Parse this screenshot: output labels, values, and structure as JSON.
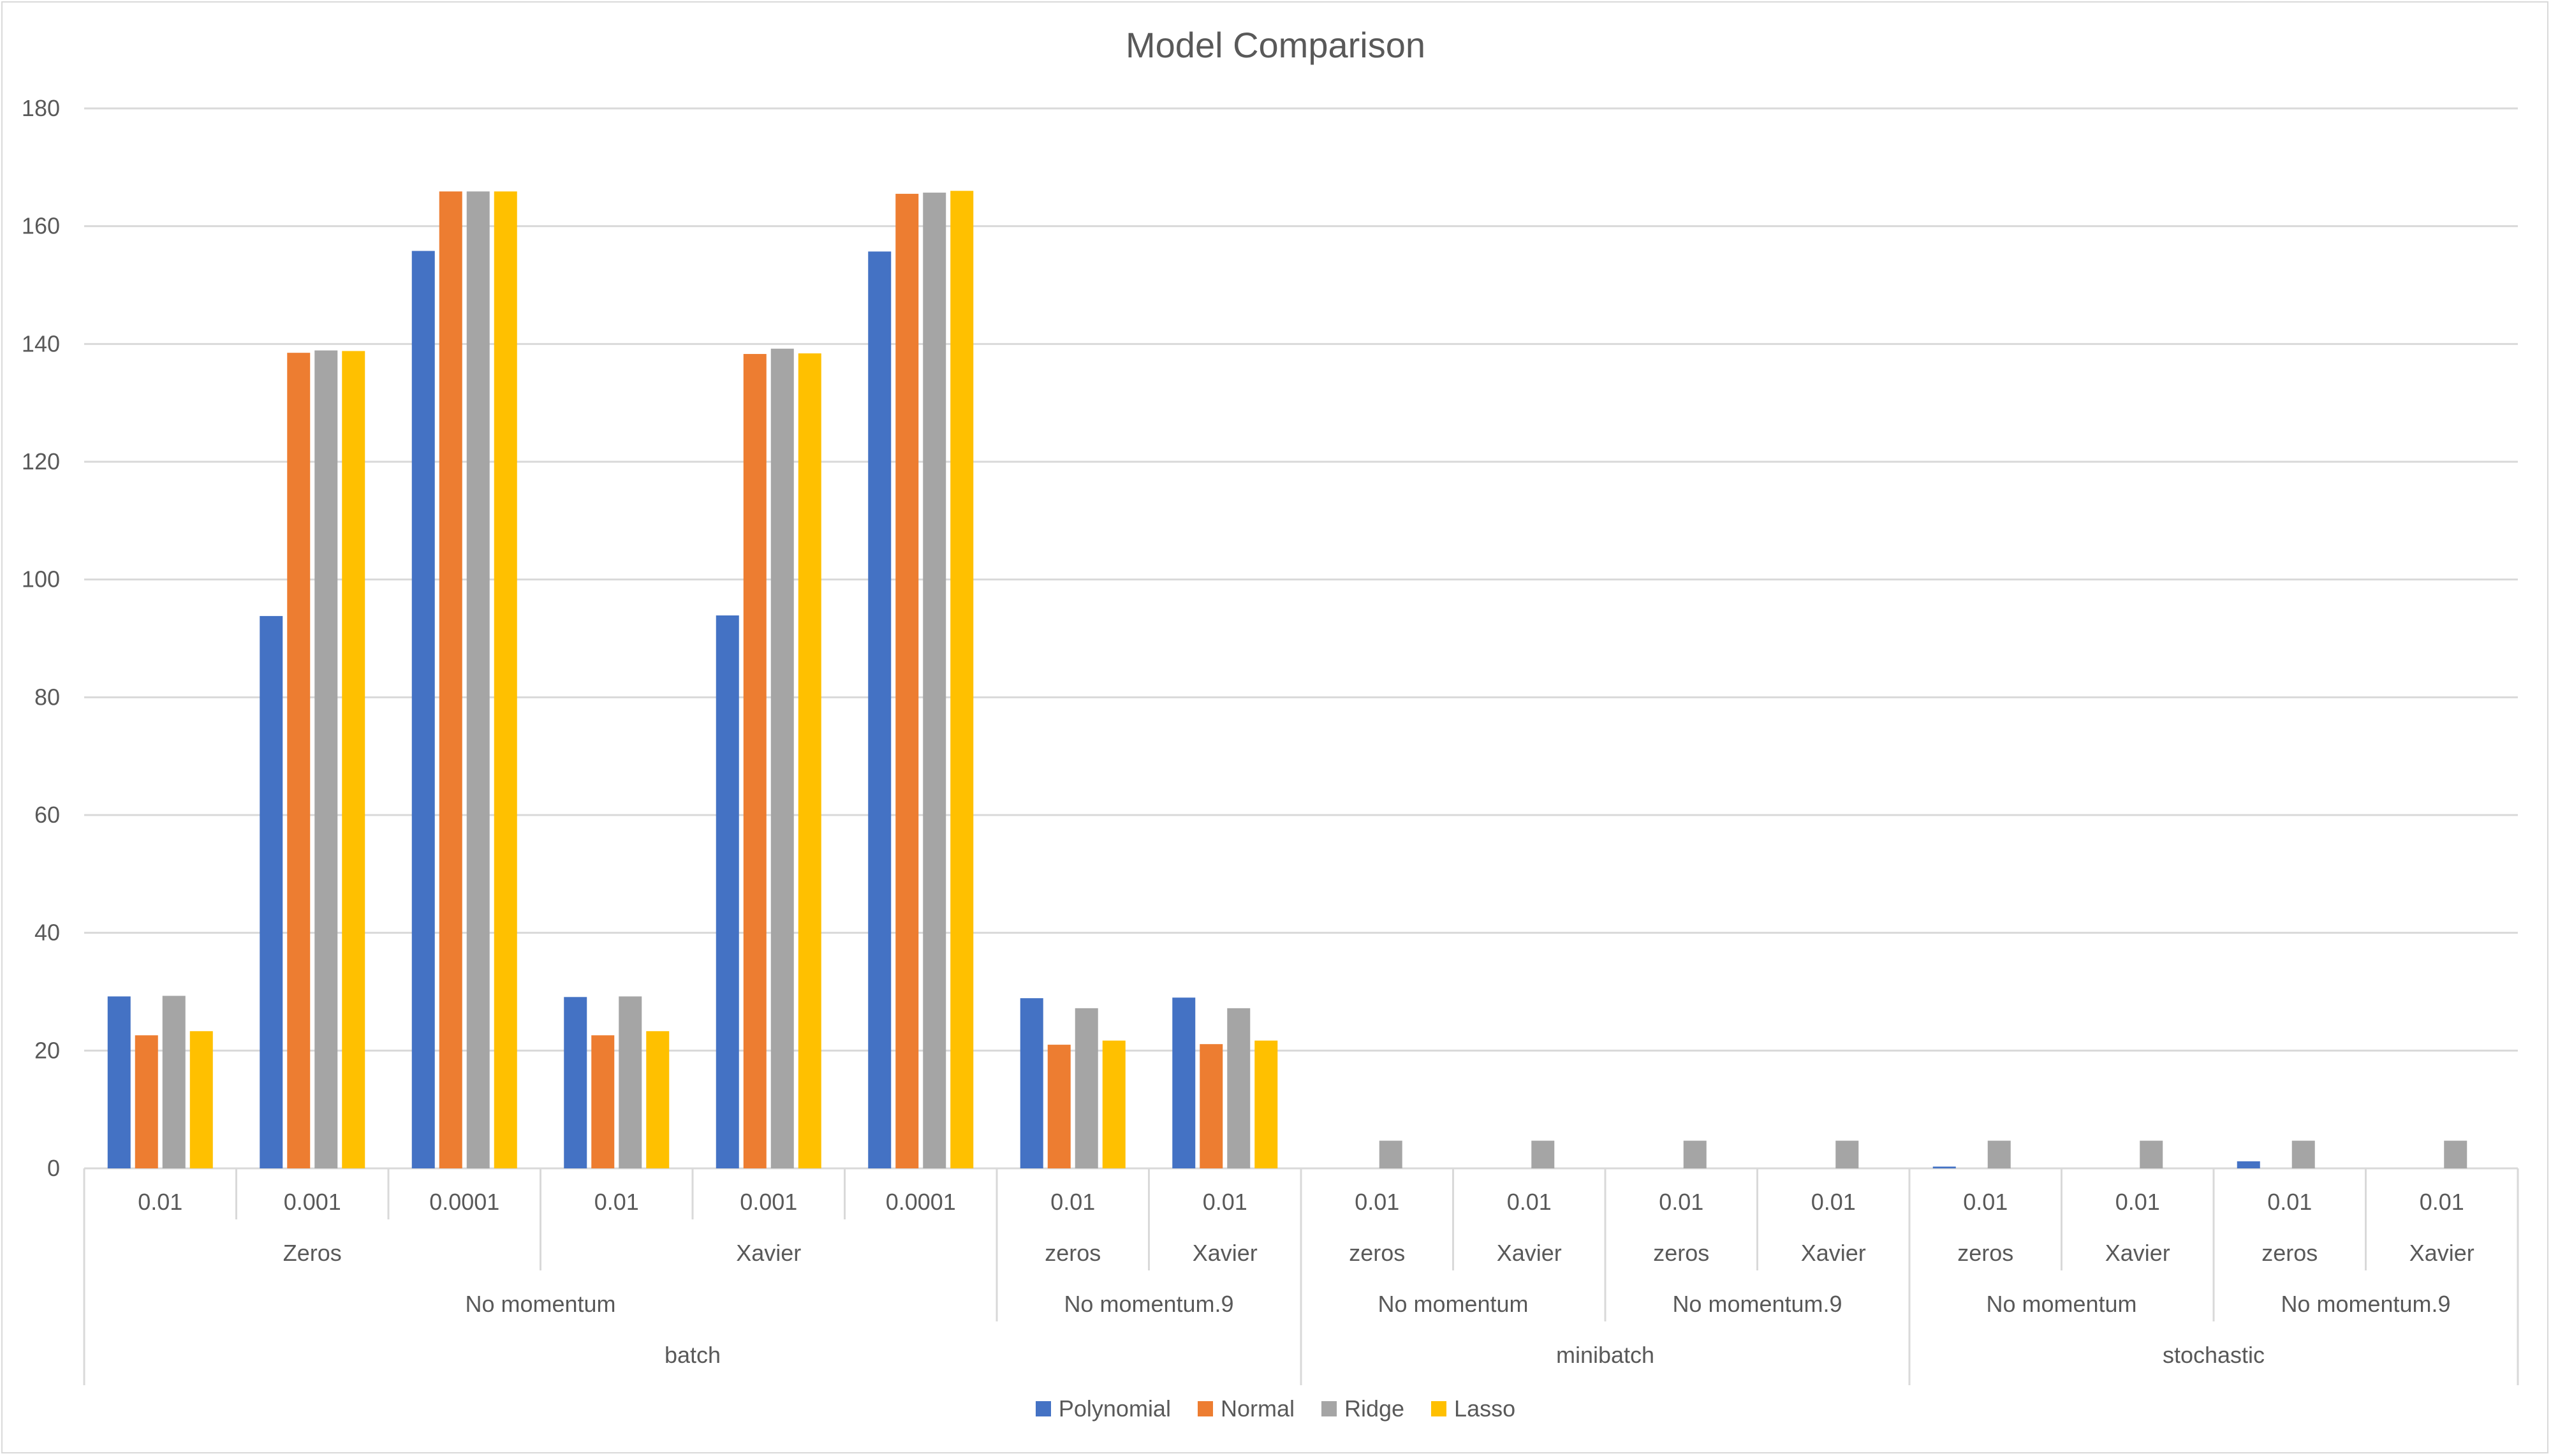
{
  "chart_data": {
    "type": "bar",
    "title": "Model Comparison",
    "xlabel": "",
    "ylabel": "",
    "ylim": [
      0,
      180
    ],
    "yticks": [
      0,
      20,
      40,
      60,
      80,
      100,
      120,
      140,
      160,
      180
    ],
    "grid": true,
    "legend_position": "bottom",
    "colors": {
      "Polynomial": "#4472c4",
      "Normal": "#ed7d31",
      "Ridge": "#a5a5a5",
      "Lasso": "#ffc000",
      "gridline": "#d9d9d9",
      "text": "#595959"
    },
    "categories": [
      "0.01",
      "0.001",
      "0.0001",
      "0.01",
      "0.001",
      "0.0001",
      "0.01",
      "0.01",
      "0.01",
      "0.01",
      "0.01",
      "0.01",
      "0.01",
      "0.01",
      "0.01",
      "0.01"
    ],
    "category_levels": {
      "initialization": [
        {
          "label": "Zeros",
          "span": 3
        },
        {
          "label": "Xavier",
          "span": 3
        },
        {
          "label": "zeros",
          "span": 1
        },
        {
          "label": "Xavier",
          "span": 1
        },
        {
          "label": "zeros",
          "span": 1
        },
        {
          "label": "Xavier",
          "span": 1
        },
        {
          "label": "zeros",
          "span": 1
        },
        {
          "label": "Xavier",
          "span": 1
        },
        {
          "label": "zeros",
          "span": 1
        },
        {
          "label": "Xavier",
          "span": 1
        },
        {
          "label": "zeros",
          "span": 1
        },
        {
          "label": "Xavier",
          "span": 1
        }
      ],
      "momentum": [
        {
          "label": "No momentum",
          "span": 6
        },
        {
          "label": "No momentum.9",
          "span": 2
        },
        {
          "label": "No momentum",
          "span": 2
        },
        {
          "label": "No momentum.9",
          "span": 2
        },
        {
          "label": "No momentum",
          "span": 2
        },
        {
          "label": "No momentum.9",
          "span": 2
        }
      ],
      "method": [
        {
          "label": "batch",
          "span": 8
        },
        {
          "label": "minibatch",
          "span": 4
        },
        {
          "label": "stochastic",
          "span": 4
        }
      ]
    },
    "series": [
      {
        "name": "Polynomial",
        "values": [
          29.2,
          93.8,
          155.8,
          29.1,
          93.9,
          155.7,
          28.9,
          29.0,
          0,
          0,
          0,
          0,
          0.3,
          0,
          1.2,
          0
        ]
      },
      {
        "name": "Normal",
        "values": [
          22.6,
          138.5,
          165.9,
          22.6,
          138.3,
          165.5,
          21.0,
          21.1,
          0,
          0,
          0,
          0,
          0,
          0,
          0,
          0
        ]
      },
      {
        "name": "Ridge",
        "values": [
          29.3,
          138.9,
          165.9,
          29.2,
          139.2,
          165.7,
          27.2,
          27.2,
          4.7,
          4.7,
          4.7,
          4.7,
          4.7,
          4.7,
          4.7,
          4.7
        ]
      },
      {
        "name": "Lasso",
        "values": [
          23.3,
          138.8,
          165.9,
          23.3,
          138.4,
          166.0,
          21.7,
          21.7,
          0,
          0,
          0,
          0,
          0,
          0,
          0,
          0
        ]
      }
    ]
  }
}
